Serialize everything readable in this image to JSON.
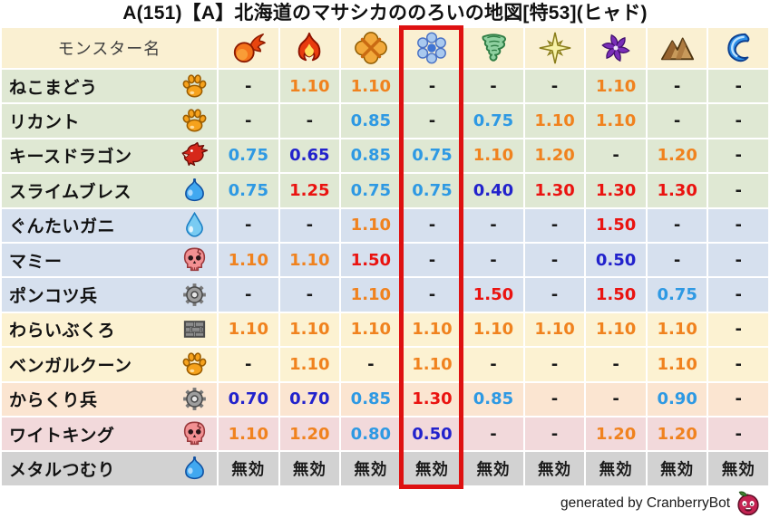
{
  "title": "A(151)【A】北海道のマサシカののろいの地図[特53](ヒャド)",
  "footer": {
    "credit": "generated by CranberryBot",
    "icon": "cranberry-icon"
  },
  "colors": {
    "orange": "#F0821E",
    "red": "#EA1310",
    "blue": "#2E99E3",
    "navy": "#2222CC",
    "black": "#1A1A1A",
    "highlight": "#DE1111",
    "header_bg": "#FAF0D2",
    "row_green": "#DFE8D3",
    "row_blue": "#D6E0EE",
    "row_yellow": "#FCF2D2",
    "row_peach": "#FBE5D1",
    "row_pink": "#F2D9DB",
    "row_gray": "#D2D2D2"
  },
  "highlight": {
    "element_column_index": 3
  },
  "table": {
    "name_header": "モンスター名",
    "element_columns": [
      {
        "icon": "fireball-icon"
      },
      {
        "icon": "flame-icon"
      },
      {
        "icon": "explosion-icon"
      },
      {
        "icon": "snowflake-icon"
      },
      {
        "icon": "tornado-icon"
      },
      {
        "icon": "star-icon"
      },
      {
        "icon": "pinwheel-icon"
      },
      {
        "icon": "mountain-icon"
      },
      {
        "icon": "wave-icon"
      }
    ],
    "rows": [
      {
        "monster": "ねこまどう",
        "icon": "paw-icon",
        "bg": "row_green",
        "values": [
          "-",
          "1.10",
          "1.10",
          "-",
          "-",
          "-",
          "1.10",
          "-",
          "-"
        ]
      },
      {
        "monster": "リカント",
        "icon": "paw-icon",
        "bg": "row_green",
        "values": [
          "-",
          "-",
          "0.85",
          "-",
          "0.75",
          "1.10",
          "1.10",
          "-",
          "-"
        ]
      },
      {
        "monster": "キースドラゴン",
        "icon": "dragon-icon",
        "bg": "row_green",
        "values": [
          "0.75",
          "0.65",
          "0.85",
          "0.75",
          "1.10",
          "1.20",
          "-",
          "1.20",
          "-"
        ]
      },
      {
        "monster": "スライムブレス",
        "icon": "slime-icon",
        "bg": "row_green",
        "values": [
          "0.75",
          "1.25",
          "0.75",
          "0.75",
          "0.40",
          "1.30",
          "1.30",
          "1.30",
          "-"
        ]
      },
      {
        "monster": "ぐんたいガニ",
        "icon": "waterdrop-icon",
        "bg": "row_blue",
        "values": [
          "-",
          "-",
          "1.10",
          "-",
          "-",
          "-",
          "1.50",
          "-",
          "-"
        ]
      },
      {
        "monster": "マミー",
        "icon": "skull-icon",
        "bg": "row_blue",
        "values": [
          "1.10",
          "1.10",
          "1.50",
          "-",
          "-",
          "-",
          "0.50",
          "-",
          "-"
        ]
      },
      {
        "monster": "ポンコツ兵",
        "icon": "gear-icon",
        "bg": "row_blue",
        "values": [
          "-",
          "-",
          "1.10",
          "-",
          "1.50",
          "-",
          "1.50",
          "0.75",
          "-"
        ]
      },
      {
        "monster": "わらいぶくろ",
        "icon": "brick-icon",
        "bg": "row_yellow",
        "values": [
          "1.10",
          "1.10",
          "1.10",
          "1.10",
          "1.10",
          "1.10",
          "1.10",
          "1.10",
          "-"
        ]
      },
      {
        "monster": "ベンガルクーン",
        "icon": "paw-icon",
        "bg": "row_yellow",
        "values": [
          "-",
          "1.10",
          "-",
          "1.10",
          "-",
          "-",
          "-",
          "1.10",
          "-"
        ]
      },
      {
        "monster": "からくり兵",
        "icon": "gear-icon",
        "bg": "row_peach",
        "values": [
          "0.70",
          "0.70",
          "0.85",
          "1.30",
          "0.85",
          "-",
          "-",
          "0.90",
          "-"
        ]
      },
      {
        "monster": "ワイトキング",
        "icon": "skull-icon",
        "bg": "row_pink",
        "values": [
          "1.10",
          "1.20",
          "0.80",
          "0.50",
          "-",
          "-",
          "1.20",
          "1.20",
          "-"
        ]
      },
      {
        "monster": "メタルつむり",
        "icon": "slime-icon",
        "bg": "row_gray",
        "values": [
          "無効",
          "無効",
          "無効",
          "無効",
          "無効",
          "無効",
          "無効",
          "無効",
          "無効"
        ]
      }
    ]
  }
}
